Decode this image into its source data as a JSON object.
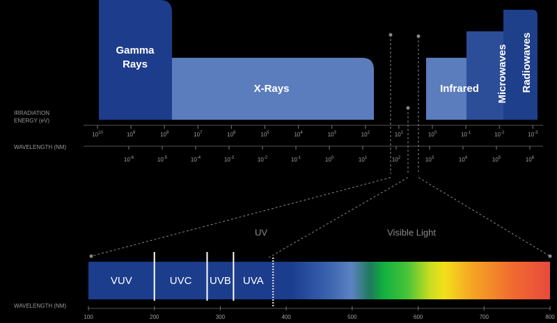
{
  "blocks": [
    {
      "lines": [
        "Gamma",
        "Rays"
      ],
      "color": "#1d3d8c"
    },
    {
      "lines": [
        "X-Rays"
      ],
      "color": "#5b7dbd"
    },
    {
      "lines": [
        "Infrared"
      ],
      "color": "#5b7dbd"
    },
    {
      "lines": [
        "Microwaves"
      ],
      "color": "#2c4d98"
    },
    {
      "lines": [
        "Radiowaves"
      ],
      "color": "#1e3f8a"
    }
  ],
  "energy_axis": {
    "label_lines": [
      "IRRADIATION",
      "ENERGY (eV)"
    ],
    "ticks": [
      {
        "base": "10",
        "exp": "10"
      },
      {
        "base": "10",
        "exp": "9"
      },
      {
        "base": "10",
        "exp": "8"
      },
      {
        "base": "10",
        "exp": "7"
      },
      {
        "base": "10",
        "exp": "6"
      },
      {
        "base": "10",
        "exp": "5"
      },
      {
        "base": "10",
        "exp": "4"
      },
      {
        "base": "10",
        "exp": "3"
      },
      {
        "base": "10",
        "exp": "2"
      },
      {
        "base": "10",
        "exp": "1"
      },
      {
        "base": "10",
        "exp": "0"
      },
      {
        "base": "10",
        "exp": "-1"
      },
      {
        "base": "10",
        "exp": "-2"
      },
      {
        "base": "10",
        "exp": "-3"
      }
    ]
  },
  "wavelength_axis": {
    "label": "WAVELENGTH (NM)",
    "ticks": [
      {
        "base": "10",
        "exp": "-6"
      },
      {
        "base": "10",
        "exp": "-5"
      },
      {
        "base": "10",
        "exp": "-4"
      },
      {
        "base": "10",
        "exp": "-3"
      },
      {
        "base": "10",
        "exp": "-2"
      },
      {
        "base": "10",
        "exp": "-1"
      },
      {
        "base": "10",
        "exp": "0"
      },
      {
        "base": "10",
        "exp": "1"
      },
      {
        "base": "10",
        "exp": "2"
      },
      {
        "base": "10",
        "exp": "3"
      },
      {
        "base": "10",
        "exp": "4"
      },
      {
        "base": "10",
        "exp": "5"
      },
      {
        "base": "10",
        "exp": "6"
      }
    ]
  },
  "detail": {
    "region_labels": [
      "UV",
      "Visible Light"
    ],
    "bands": [
      "VUV",
      "UVC",
      "UVB",
      "UVA"
    ],
    "dividers": [
      200,
      280,
      320,
      380
    ],
    "axis_label": "WAVELENGTH (NM)",
    "xlim": [
      100,
      800
    ],
    "ticks": [
      100,
      200,
      300,
      400,
      500,
      600,
      700,
      800
    ]
  }
}
